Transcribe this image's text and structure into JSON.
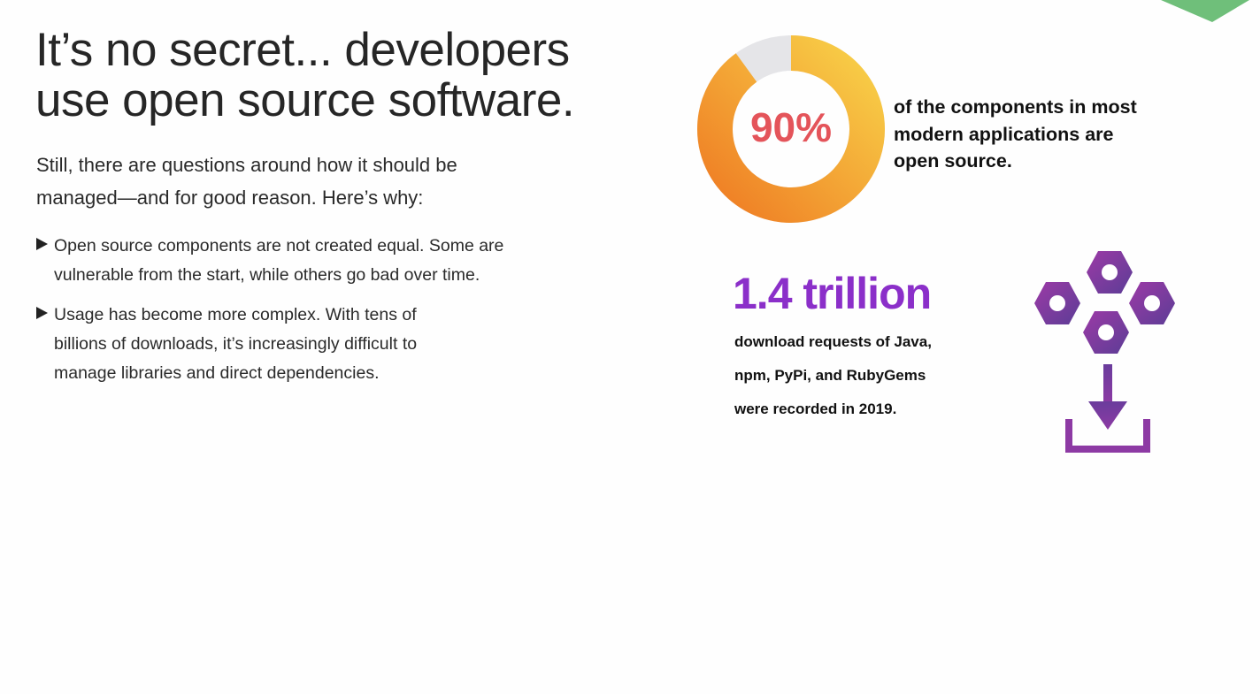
{
  "headline": {
    "line1": "It’s no secret... developers",
    "line2": "use open source software."
  },
  "intro": {
    "line1": "Still, there are questions around how it should be",
    "line2": "managed—and for good reason. Here’s why:"
  },
  "bullets": [
    {
      "line1": "Open source components are not created equal. Some are",
      "line2": "vulnerable from the start, while others go bad over time."
    },
    {
      "line1": "Usage has become more complex. With tens of",
      "line2": "billions of downloads, it’s increasingly difficult to",
      "line3": "manage libraries and direct dependencies."
    }
  ],
  "stat_open_source": {
    "percent_label": "90%",
    "percent_value": 0.9,
    "desc_line1": "of the components in most",
    "desc_line2": "modern applications are",
    "desc_line3": "open source."
  },
  "stat_downloads": {
    "value": "1.4 trillion",
    "desc_line1": "download requests of Java,",
    "desc_line2": "npm, PyPi, and RubyGems",
    "desc_line3": "were recorded in 2019."
  },
  "icons": {
    "bullet": "triangle-right-icon",
    "packages": "hexagon-packages-download-icon",
    "corner": "green-corner-triangle"
  },
  "colors": {
    "percent_text": "#e4545a",
    "donut_gradient_start": "#ef7d24",
    "donut_gradient_end": "#f8d048",
    "donut_remaining": "#e5e5e8",
    "accent_purple": "#8b2fc9",
    "icon_purple_start": "#9c3aa6",
    "icon_purple_end": "#5c3d96",
    "corner_green": "#6fbf7a"
  }
}
